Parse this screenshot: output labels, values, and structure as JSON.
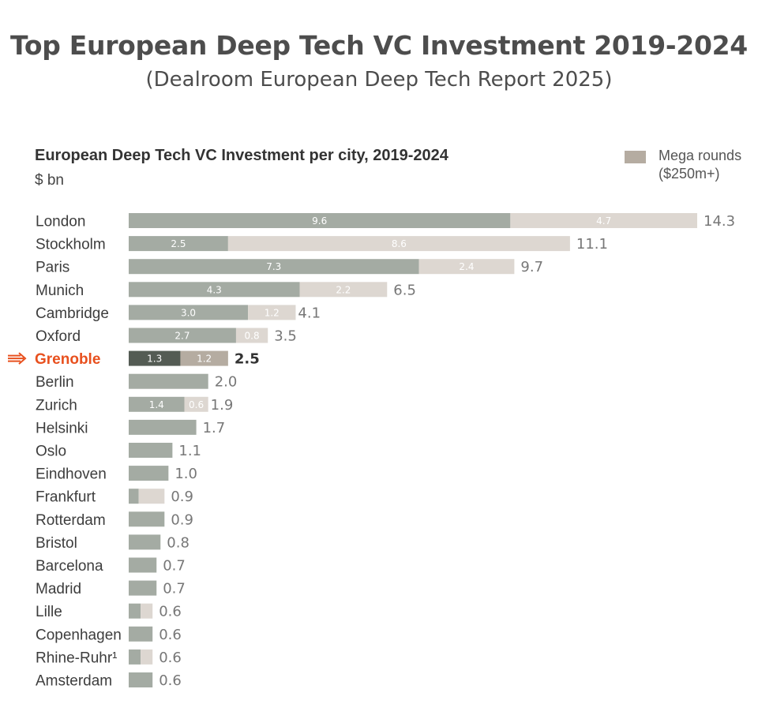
{
  "header": {
    "title": "Top European Deep Tech VC Investment 2019-2024",
    "subtitle": "(Dealroom European Deep Tech Report 2025)"
  },
  "legend": {
    "line1": "Mega rounds",
    "line2": "($250m+)",
    "color": "#b5aca1"
  },
  "colors": {
    "base": "#a4aba3",
    "mega": "#ddd7d1",
    "highlight_base": "#545c54",
    "highlight_mega": "#b5aca1",
    "highlight_text": "#e8501e",
    "arrow": "#e8501e"
  },
  "chart_data": {
    "type": "bar",
    "orientation": "horizontal",
    "stacked": true,
    "title": "European Deep Tech VC Investment per city, 2019-2024",
    "unit": "$ bn",
    "highlight": "Grenoble",
    "categories": [
      "London",
      "Stockholm",
      "Paris",
      "Munich",
      "Cambridge",
      "Oxford",
      "Grenoble",
      "Berlin",
      "Zurich",
      "Helsinki",
      "Oslo",
      "Eindhoven",
      "Frankfurt",
      "Rotterdam",
      "Bristol",
      "Barcelona",
      "Madrid",
      "Lille",
      "Copenhagen",
      "Rhine-Ruhr¹",
      "Amsterdam"
    ],
    "totals": [
      14.3,
      11.1,
      9.7,
      6.5,
      4.1,
      3.5,
      2.5,
      2.0,
      1.9,
      1.7,
      1.1,
      1.0,
      0.9,
      0.9,
      0.8,
      0.7,
      0.7,
      0.6,
      0.6,
      0.6,
      0.6
    ],
    "total_labels": [
      "14.3",
      "11.1",
      "9.7",
      "6.5",
      "4.1",
      "3.5",
      "2.5",
      "2.0",
      "1.9",
      "1.7",
      "1.1",
      "1.0",
      "0.9",
      "0.9",
      "0.8",
      "0.7",
      "0.7",
      "0.6",
      "0.6",
      "0.6",
      "0.6"
    ],
    "series": [
      {
        "values": [
          9.6,
          2.5,
          7.3,
          4.3,
          3.0,
          2.7,
          1.3,
          2.0,
          1.4,
          1.7,
          1.1,
          1.0,
          0.25,
          0.9,
          0.8,
          0.7,
          0.7,
          0.3,
          0.6,
          0.3,
          0.6
        ],
        "labels": [
          "9.6",
          "2.5",
          "7.3",
          "4.3",
          "3.0",
          "2.7",
          "1.3",
          "",
          "1.4",
          "",
          "",
          "",
          "",
          "",
          "",
          "",
          "",
          "",
          "",
          "",
          ""
        ]
      },
      {
        "name": "Mega rounds ($250m+)",
        "values": [
          4.7,
          8.6,
          2.4,
          2.2,
          1.2,
          0.8,
          1.2,
          0,
          0.6,
          0,
          0,
          0,
          0.65,
          0,
          0,
          0,
          0,
          0.3,
          0,
          0.3,
          0
        ],
        "labels": [
          "4.7",
          "8.6",
          "2.4",
          "2.2",
          "1.2",
          "0.8",
          "1.2",
          "",
          "0.6",
          "",
          "",
          "",
          "",
          "",
          "",
          "",
          "",
          "",
          "",
          "",
          ""
        ]
      }
    ]
  }
}
